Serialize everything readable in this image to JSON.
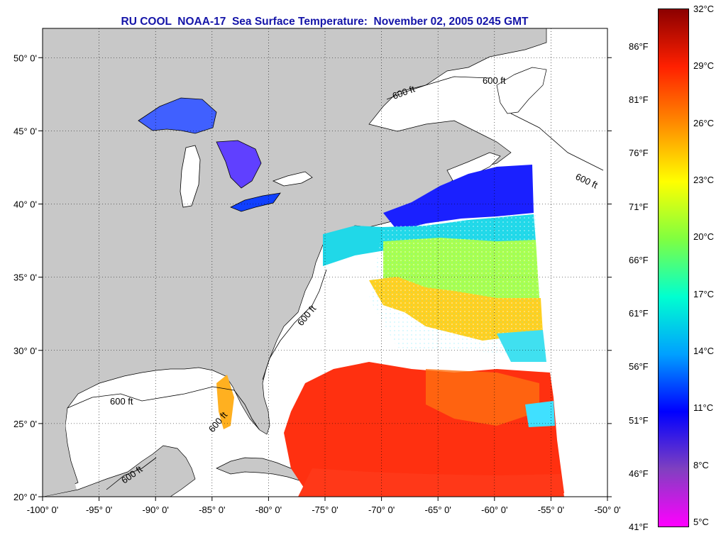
{
  "title": "RU COOL  NOAA-17  Sea Surface Temperature:  November 02, 2005 0245 GMT",
  "map": {
    "lon_ticks": [
      "-100° 0'",
      "-95° 0'",
      "-90° 0'",
      "-85° 0'",
      "-80° 0'",
      "-75° 0'",
      "-70° 0'",
      "-65° 0'",
      "-60° 0'",
      "-55° 0'",
      "-50° 0'"
    ],
    "lat_ticks": [
      "50° 0'",
      "45° 0'",
      "40° 0'",
      "35° 0'",
      "30° 0'",
      "25° 0'",
      "20° 0'"
    ],
    "lon_range": [
      -100,
      -50
    ],
    "lat_range": [
      20,
      52
    ],
    "contour_label": "600 ft",
    "land_color": "#c8c8c8",
    "no_data_color": "#ffffff",
    "grid": "dotted"
  },
  "colorbar": {
    "celsius": [
      "32°C",
      "29°C",
      "26°C",
      "23°C",
      "20°C",
      "17°C",
      "14°C",
      "11°C",
      "8°C",
      "5°C"
    ],
    "fahrenheit": [
      "86°F",
      "81°F",
      "76°F",
      "71°F",
      "66°F",
      "61°F",
      "56°F",
      "51°F",
      "46°F",
      "41°F"
    ],
    "colors": [
      "#8b0000",
      "#ff2000",
      "#ff8c00",
      "#ffff00",
      "#80ff40",
      "#00ffd0",
      "#00a0ff",
      "#0000ff",
      "#8040c0",
      "#ff00ff"
    ]
  }
}
